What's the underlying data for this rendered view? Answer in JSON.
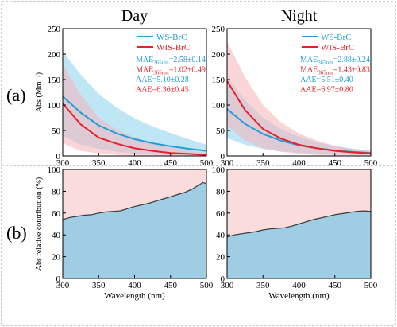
{
  "panel_labels": [
    "(a)",
    "(b)"
  ],
  "colors": {
    "ws": "#1f9fd8",
    "wis": "#e8202a",
    "ws_band": "#a8def2",
    "wis_band": "#f6b3b8",
    "contrib_ws": "#9fcde3",
    "contrib_wis": "#fadcdc"
  },
  "chart_data": [
    {
      "type": "line",
      "id": "a-day",
      "title": "Day",
      "xlabel": "",
      "ylabel": "Abs (Mm⁻¹)",
      "xlim": [
        300,
        500
      ],
      "ylim": [
        0,
        250
      ],
      "xticks": [
        300,
        350,
        400,
        450,
        500
      ],
      "yticks": [
        0,
        50,
        100,
        150,
        200,
        250
      ],
      "x": [
        300,
        325,
        350,
        375,
        400,
        425,
        450,
        475,
        500
      ],
      "series": [
        {
          "name": "WS-BrC",
          "values": [
            117,
            85,
            60,
            44,
            33,
            25,
            19,
            14,
            10
          ],
          "upper": [
            205,
            160,
            122,
            95,
            74,
            58,
            45,
            33,
            22
          ],
          "lower": [
            40,
            22,
            14,
            8,
            5,
            3,
            2,
            1,
            0
          ]
        },
        {
          "name": "WIS-BrC",
          "values": [
            103,
            62,
            36,
            24,
            15,
            10,
            6,
            4,
            2
          ],
          "upper": [
            180,
            120,
            75,
            52,
            36,
            25,
            17,
            11,
            6
          ],
          "lower": [
            25,
            10,
            5,
            2,
            1,
            0,
            0,
            0,
            0
          ]
        }
      ],
      "annotations": [
        {
          "label": "MAE",
          "sub": "365nm",
          "value": "=2.58±0.14",
          "series": "WS-BrC"
        },
        {
          "label": "MAE",
          "sub": "365nm",
          "value": "=1.02±0.49",
          "series": "WIS-BrC"
        },
        {
          "label": "AAE",
          "sub": "",
          "value": "=5.10±0.28",
          "series": "WS-BrC"
        },
        {
          "label": "AAE",
          "sub": "",
          "value": "=6.36±0.45",
          "series": "WIS-BrC"
        }
      ]
    },
    {
      "type": "line",
      "id": "a-night",
      "title": "Night",
      "xlabel": "",
      "ylabel": "",
      "xlim": [
        300,
        500
      ],
      "ylim": [
        0,
        250
      ],
      "xticks": [
        300,
        350,
        400,
        450,
        500
      ],
      "yticks": [
        0,
        50,
        100,
        150,
        200,
        250
      ],
      "x": [
        300,
        325,
        350,
        375,
        400,
        425,
        450,
        475,
        500
      ],
      "series": [
        {
          "name": "WS-BrC",
          "values": [
            92,
            63,
            43,
            30,
            21,
            15,
            11,
            8,
            6
          ],
          "upper": [
            155,
            110,
            75,
            53,
            38,
            27,
            19,
            14,
            10
          ],
          "lower": [
            35,
            22,
            14,
            9,
            6,
            4,
            3,
            2,
            2
          ]
        },
        {
          "name": "WIS-BrC",
          "values": [
            147,
            90,
            53,
            34,
            22,
            15,
            10,
            7,
            5
          ],
          "upper": [
            225,
            155,
            100,
            66,
            44,
            30,
            20,
            14,
            10
          ],
          "lower": [
            60,
            30,
            15,
            8,
            4,
            2,
            1,
            1,
            1
          ]
        }
      ],
      "annotations": [
        {
          "label": "MAE",
          "sub": "365nm",
          "value": "=2.88±0.24",
          "series": "WS-BrC"
        },
        {
          "label": "MAE",
          "sub": "365nm",
          "value": "=1.43±0.83",
          "series": "WIS-BrC"
        },
        {
          "label": "AAE",
          "sub": "",
          "value": "=5.51±0.40",
          "series": "WS-BrC"
        },
        {
          "label": "AAE",
          "sub": "",
          "value": "=6.97±0.80",
          "series": "WIS-BrC"
        }
      ]
    },
    {
      "type": "area",
      "id": "b-day",
      "title": "",
      "xlabel": "Wavelength (nm)",
      "ylabel": "Abs relative contribution (%)",
      "xlim": [
        300,
        500
      ],
      "ylim": [
        0,
        100
      ],
      "xticks": [
        300,
        350,
        400,
        450,
        500
      ],
      "yticks": [
        0,
        20,
        40,
        60,
        80,
        100
      ],
      "x": [
        300,
        310,
        320,
        330,
        340,
        350,
        360,
        370,
        380,
        390,
        400,
        410,
        420,
        430,
        440,
        450,
        460,
        470,
        480,
        490,
        495,
        500
      ],
      "series": [
        {
          "name": "WS-BrC",
          "values": [
            54,
            56,
            57,
            58,
            58.5,
            60,
            61,
            61.5,
            62,
            64,
            66,
            67.5,
            69,
            71,
            73,
            75,
            77,
            79,
            82,
            86,
            88,
            87
          ]
        }
      ]
    },
    {
      "type": "area",
      "id": "b-night",
      "title": "",
      "xlabel": "Wavelength (nm)",
      "ylabel": "",
      "xlim": [
        300,
        500
      ],
      "ylim": [
        0,
        100
      ],
      "xticks": [
        300,
        350,
        400,
        450,
        500
      ],
      "yticks": [
        0,
        20,
        40,
        60,
        80,
        100
      ],
      "x": [
        300,
        310,
        320,
        330,
        340,
        350,
        360,
        370,
        380,
        390,
        400,
        410,
        420,
        430,
        440,
        450,
        460,
        470,
        480,
        490,
        500
      ],
      "series": [
        {
          "name": "WS-BrC",
          "values": [
            38,
            40,
            41,
            42,
            43,
            44.5,
            45.5,
            46,
            46.5,
            48,
            50,
            52,
            54,
            55.5,
            57,
            58.5,
            59.5,
            60.5,
            61.5,
            62,
            61.5
          ]
        }
      ]
    }
  ]
}
